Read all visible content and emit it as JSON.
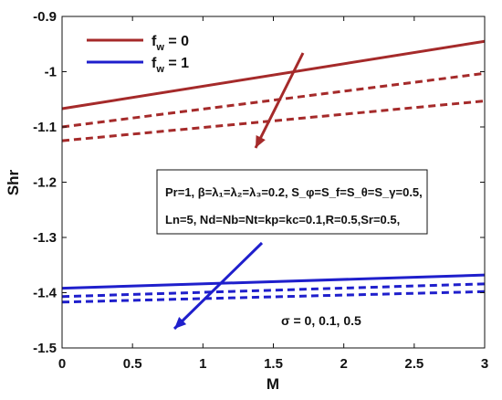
{
  "chart_data": {
    "type": "line",
    "xlabel": "M",
    "ylabel": "Shr",
    "xlim": [
      0,
      3
    ],
    "ylim": [
      -1.5,
      -0.9
    ],
    "xticks": [
      "0",
      "0.5",
      "1",
      "1.5",
      "2",
      "2.5",
      "3"
    ],
    "yticks": [
      "-0.9",
      "-1",
      "-1.1",
      "-1.2",
      "-1.3",
      "-1.4",
      "-1.5"
    ],
    "grid": false,
    "legend": {
      "placement": "top-left",
      "entries": [
        {
          "label_main": "f",
          "label_sub": "w",
          "label_rest": " = 0",
          "color": "#A52A2A"
        },
        {
          "label_main": "f",
          "label_sub": "w",
          "label_rest": " = 1",
          "color": "#1F1FCC"
        }
      ]
    },
    "colors": {
      "fw0": "#A52A2A",
      "fw1": "#1F1FCC"
    },
    "series": [
      {
        "x": [
          0,
          3
        ],
        "y": [
          -1.067,
          -0.945
        ],
        "group": "fw0",
        "dash": "solid"
      },
      {
        "x": [
          0,
          3
        ],
        "y": [
          -1.1,
          -1.003
        ],
        "group": "fw0",
        "dash": "dashed"
      },
      {
        "x": [
          0,
          3
        ],
        "y": [
          -1.125,
          -1.053
        ],
        "group": "fw0",
        "dash": "dashed"
      },
      {
        "x": [
          0,
          3
        ],
        "y": [
          -1.392,
          -1.368
        ],
        "group": "fw1",
        "dash": "solid"
      },
      {
        "x": [
          0,
          3
        ],
        "y": [
          -1.407,
          -1.384
        ],
        "group": "fw1",
        "dash": "dashed"
      },
      {
        "x": [
          0,
          3
        ],
        "y": [
          -1.417,
          -1.398
        ],
        "group": "fw1",
        "dash": "dashed"
      }
    ],
    "annotations": {
      "params_line1": "Pr=1, β=λ₁=λ₂=λ₃=0.2, S_φ=S_f=S_θ=S_γ=0.5,",
      "params_line2": "Ln=5, Nd=Nb=Nt=kp=kc=0.1,R=0.5,Sr=0.5,",
      "sigma": "σ = 0, 0.1, 0.5"
    }
  }
}
